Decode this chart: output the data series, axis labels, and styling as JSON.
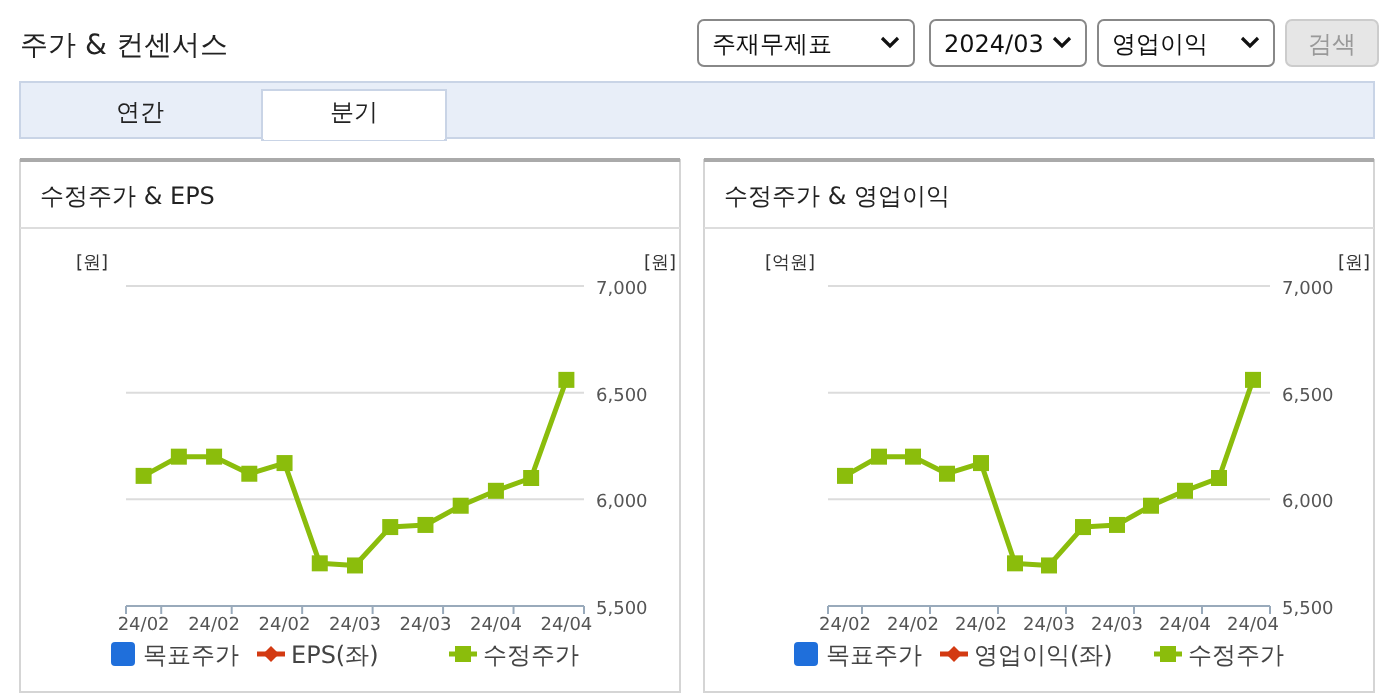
{
  "chart_data": [
    {
      "type": "other",
      "title": "주가 & 컨센서스",
      "annotations": [
        "주재무제표",
        "2024/03",
        "영업이익",
        "검색",
        "연간",
        "분기"
      ]
    },
    {
      "type": "line",
      "title": "수정주가 & EPS",
      "ylabel": "[원]",
      "y2label": "[원]",
      "categories": [
        "24/02",
        null,
        "24/02",
        null,
        "24/02",
        null,
        "24/03",
        null,
        "24/03",
        null,
        "24/04",
        null,
        "24/04"
      ],
      "series": [
        {
          "name": "목표주가",
          "type": "bar",
          "color": "#1f6fdb",
          "values": [
            null,
            null,
            null,
            null,
            null,
            null,
            null,
            null,
            null,
            null,
            null,
            null,
            null
          ]
        },
        {
          "name": "EPS(좌)",
          "type": "line",
          "marker": "diamond",
          "color": "#d33a12",
          "values": [
            null,
            null,
            null,
            null,
            null,
            null,
            null,
            null,
            null,
            null,
            null,
            null,
            null
          ]
        },
        {
          "name": "수정주가",
          "type": "line",
          "marker": "square",
          "axis": "y2",
          "color": "#8bbd0c",
          "values": [
            6110,
            6200,
            6200,
            6120,
            6170,
            5700,
            5690,
            5870,
            5880,
            5970,
            6040,
            6100,
            6560
          ]
        }
      ],
      "y2lim": [
        5500,
        7000
      ],
      "y2ticks": [
        {
          "value": 5500,
          "label": "5,500"
        },
        {
          "value": 6000,
          "label": "6,000"
        },
        {
          "value": 6500,
          "label": "6,500"
        },
        {
          "value": 7000,
          "label": "7,000"
        }
      ],
      "grid": "y",
      "legend": "bottom"
    },
    {
      "type": "line",
      "title": "수정주가 & 영업이익",
      "ylabel": "[억원]",
      "y2label": "[원]",
      "categories": [
        "24/02",
        null,
        "24/02",
        null,
        "24/02",
        null,
        "24/03",
        null,
        "24/03",
        null,
        "24/04",
        null,
        "24/04"
      ],
      "series": [
        {
          "name": "목표주가",
          "type": "bar",
          "color": "#1f6fdb",
          "values": [
            null,
            null,
            null,
            null,
            null,
            null,
            null,
            null,
            null,
            null,
            null,
            null,
            null
          ]
        },
        {
          "name": "영업이익(좌)",
          "type": "line",
          "marker": "diamond",
          "color": "#d33a12",
          "values": [
            null,
            null,
            null,
            null,
            null,
            null,
            null,
            null,
            null,
            null,
            null,
            null,
            null
          ]
        },
        {
          "name": "수정주가",
          "type": "line",
          "marker": "square",
          "axis": "y2",
          "color": "#8bbd0c",
          "values": [
            6110,
            6200,
            6200,
            6120,
            6170,
            5700,
            5690,
            5870,
            5880,
            5970,
            6040,
            6100,
            6560
          ]
        }
      ],
      "y2lim": [
        5500,
        7000
      ],
      "y2ticks": [
        {
          "value": 5500,
          "label": "5,500"
        },
        {
          "value": 6000,
          "label": "6,000"
        },
        {
          "value": 6500,
          "label": "6,500"
        },
        {
          "value": 7000,
          "label": "7,000"
        }
      ],
      "grid": "y",
      "legend": "bottom"
    }
  ]
}
